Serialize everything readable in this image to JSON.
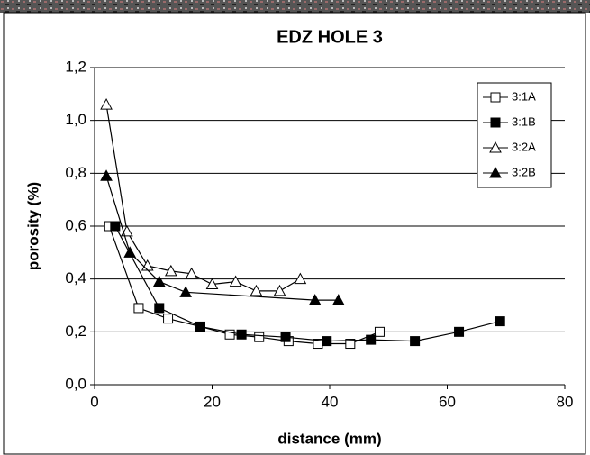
{
  "chart_data": {
    "type": "line",
    "title": "EDZ HOLE 3",
    "x_label": "distance (mm)",
    "y_label": "porosity (%)",
    "xlim": [
      0,
      80
    ],
    "xticks": [
      0,
      20,
      40,
      60,
      80
    ],
    "ylim": [
      0,
      1.2
    ],
    "yticks": [
      {
        "value": 0,
        "label": "0,0"
      },
      {
        "value": 0.2,
        "label": "0,2"
      },
      {
        "value": 0.4,
        "label": "0,4"
      },
      {
        "value": 0.6,
        "label": "0,6"
      },
      {
        "value": 0.8,
        "label": "0,8"
      },
      {
        "value": 1.0,
        "label": "1,0"
      },
      {
        "value": 1.2,
        "label": "1,2"
      }
    ],
    "grid": true,
    "legend": "upper right",
    "series": [
      {
        "name": "3:1A",
        "color": "#000000",
        "marker": "square",
        "marker_fill": "#ffffff",
        "x": [
          2.5,
          7.5,
          12.5,
          18,
          23,
          28,
          33,
          38,
          43.5,
          48.5
        ],
        "values": [
          0.6,
          0.29,
          0.25,
          0.22,
          0.19,
          0.18,
          0.165,
          0.155,
          0.155,
          0.2
        ]
      },
      {
        "name": "3:1B",
        "color": "#000000",
        "marker": "square",
        "marker_fill": "#000000",
        "x": [
          3.5,
          11,
          18,
          25,
          32.5,
          39.5,
          47,
          54.5,
          62,
          69
        ],
        "values": [
          0.6,
          0.29,
          0.22,
          0.19,
          0.18,
          0.165,
          0.17,
          0.165,
          0.2,
          0.24
        ]
      },
      {
        "name": "3:2A",
        "color": "#000000",
        "marker": "triangle",
        "marker_fill": "#ffffff",
        "x": [
          2,
          5.5,
          9,
          13,
          16.5,
          20,
          24,
          27.5,
          31.5,
          35
        ],
        "values": [
          1.06,
          0.58,
          0.45,
          0.43,
          0.42,
          0.38,
          0.39,
          0.355,
          0.355,
          0.4
        ]
      },
      {
        "name": "3:2B",
        "color": "#000000",
        "marker": "triangle",
        "marker_fill": "#000000",
        "x": [
          2,
          6,
          11,
          15.5,
          37.5,
          41.5
        ],
        "values": [
          0.79,
          0.5,
          0.39,
          0.35,
          0.32,
          0.32
        ]
      }
    ]
  }
}
